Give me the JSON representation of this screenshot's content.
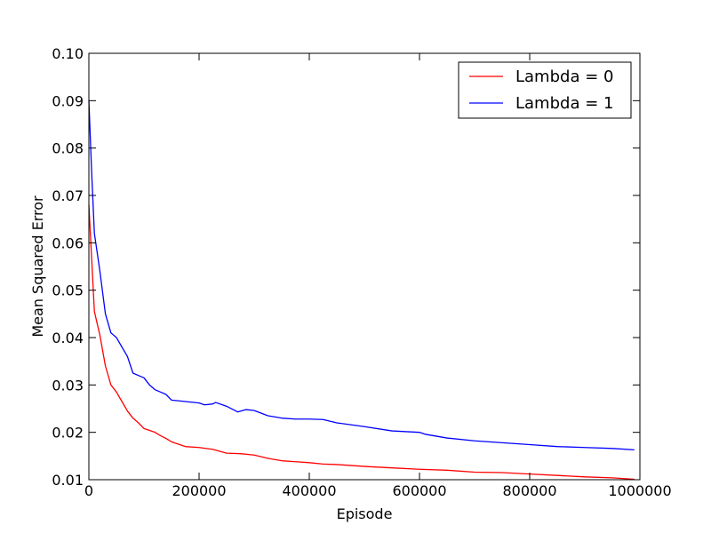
{
  "chart_data": {
    "type": "line",
    "title": "",
    "xlabel": "Episode",
    "ylabel": "Mean Squared Error",
    "xlim": [
      0,
      1000000
    ],
    "ylim": [
      0.01,
      0.1
    ],
    "xticks": [
      0,
      200000,
      400000,
      600000,
      800000,
      1000000
    ],
    "xtick_labels": [
      "0",
      "200000",
      "400000",
      "600000",
      "800000",
      "1000000"
    ],
    "yticks": [
      0.01,
      0.02,
      0.03,
      0.04,
      0.05,
      0.06,
      0.07,
      0.08,
      0.09,
      0.1
    ],
    "ytick_labels": [
      "0.01",
      "0.02",
      "0.03",
      "0.04",
      "0.05",
      "0.06",
      "0.07",
      "0.08",
      "0.09",
      "0.10"
    ],
    "grid": false,
    "legend": "top-right",
    "series": [
      {
        "name": "Lambda = 0",
        "color": "#ff0000",
        "x": [
          0,
          10000,
          20000,
          30000,
          40000,
          50000,
          60000,
          70000,
          80000,
          90000,
          100000,
          120000,
          130000,
          140000,
          150000,
          175000,
          200000,
          225000,
          250000,
          275000,
          300000,
          325000,
          350000,
          375000,
          400000,
          425000,
          450000,
          500000,
          550000,
          600000,
          650000,
          700000,
          750000,
          800000,
          850000,
          900000,
          950000,
          990000
        ],
        "y": [
          0.068,
          0.0455,
          0.0405,
          0.034,
          0.03,
          0.0285,
          0.0265,
          0.0245,
          0.023,
          0.022,
          0.0208,
          0.02,
          0.0193,
          0.0187,
          0.018,
          0.017,
          0.0168,
          0.0164,
          0.0156,
          0.0155,
          0.0152,
          0.0145,
          0.014,
          0.0138,
          0.0136,
          0.0133,
          0.0132,
          0.0128,
          0.0125,
          0.0122,
          0.012,
          0.0116,
          0.0115,
          0.0112,
          0.0109,
          0.0106,
          0.0104,
          0.0101
        ]
      },
      {
        "name": "Lambda = 1",
        "color": "#0000ff",
        "x": [
          0,
          5000,
          10000,
          20000,
          30000,
          40000,
          50000,
          60000,
          70000,
          80000,
          90000,
          100000,
          110000,
          120000,
          130000,
          140000,
          150000,
          175000,
          200000,
          210000,
          225000,
          230000,
          250000,
          270000,
          285000,
          300000,
          325000,
          350000,
          375000,
          400000,
          425000,
          450000,
          500000,
          550000,
          600000,
          610000,
          650000,
          700000,
          750000,
          800000,
          850000,
          900000,
          950000,
          990000
        ],
        "y": [
          0.09,
          0.075,
          0.062,
          0.054,
          0.045,
          0.041,
          0.04,
          0.038,
          0.036,
          0.0325,
          0.032,
          0.0315,
          0.03,
          0.029,
          0.0285,
          0.028,
          0.0268,
          0.0265,
          0.0262,
          0.0258,
          0.026,
          0.0263,
          0.0255,
          0.0243,
          0.0248,
          0.0246,
          0.0235,
          0.023,
          0.0228,
          0.0228,
          0.0227,
          0.022,
          0.0212,
          0.0203,
          0.02,
          0.0196,
          0.0188,
          0.0182,
          0.0178,
          0.0174,
          0.017,
          0.0168,
          0.0166,
          0.0163
        ]
      }
    ]
  }
}
